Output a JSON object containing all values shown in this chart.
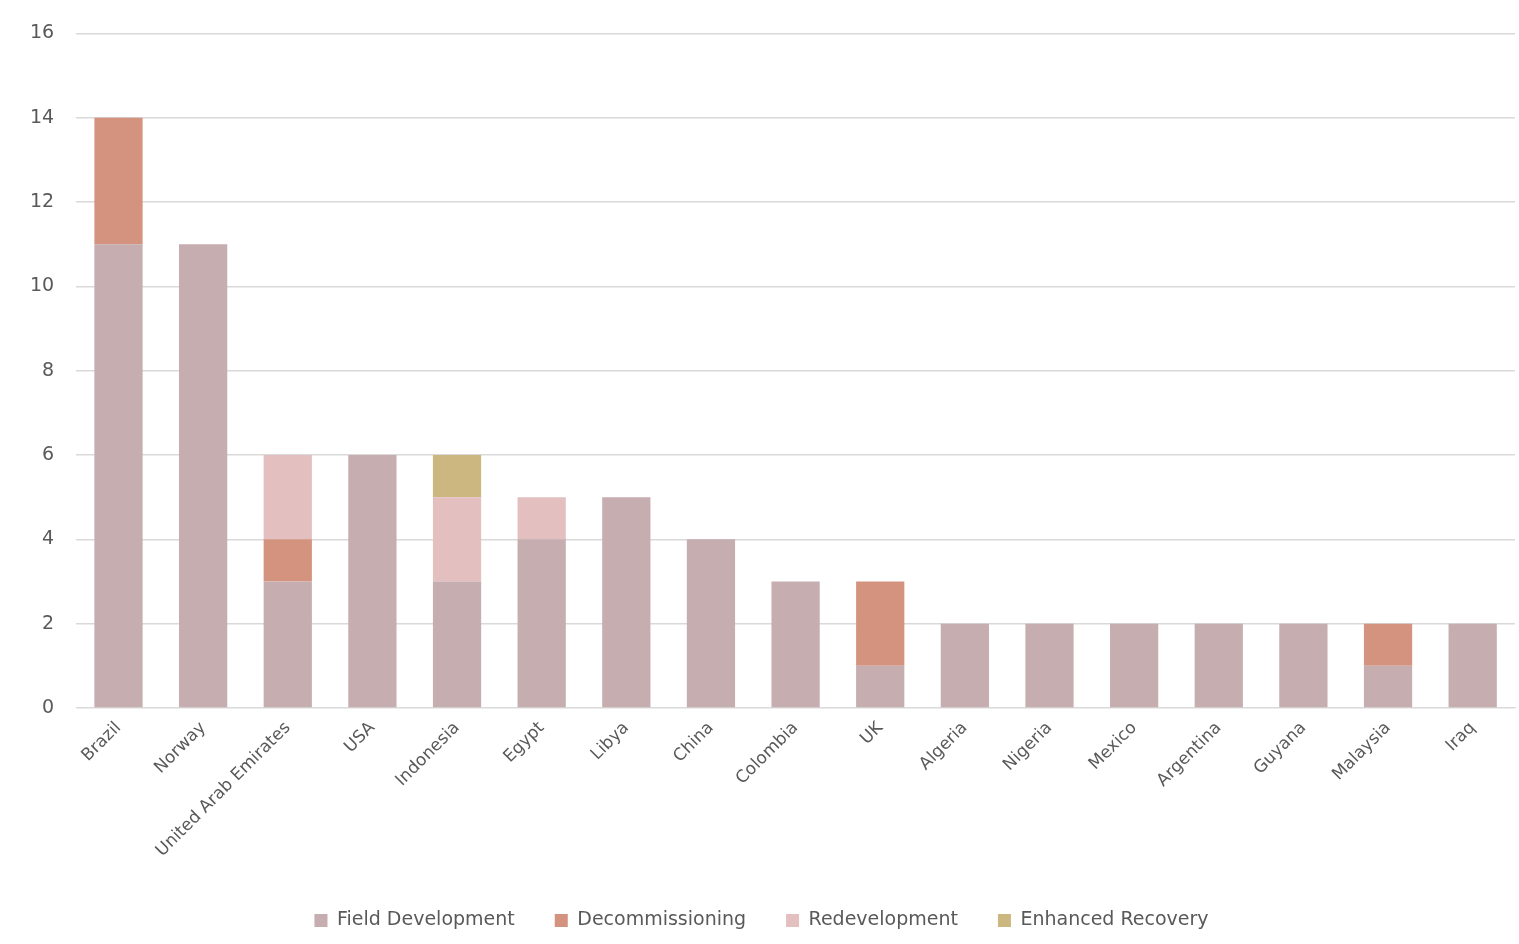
{
  "chart_data": {
    "type": "bar",
    "stacked": true,
    "categories": [
      "Brazil",
      "Norway",
      "United Arab Emirates",
      "USA",
      "Indonesia",
      "Egypt",
      "Libya",
      "China",
      "Colombia",
      "UK",
      "Algeria",
      "Nigeria",
      "Mexico",
      "Argentina",
      "Guyana",
      "Malaysia",
      "Iraq"
    ],
    "series": [
      {
        "name": "Field Development",
        "color": "#c5adb0",
        "values": [
          11,
          11,
          3,
          6,
          3,
          4,
          5,
          4,
          3,
          1,
          2,
          2,
          2,
          2,
          2,
          1,
          2
        ]
      },
      {
        "name": "Decommissioning",
        "color": "#d4937e",
        "values": [
          3,
          0,
          1,
          0,
          0,
          0,
          0,
          0,
          0,
          2,
          0,
          0,
          0,
          0,
          0,
          1,
          0
        ]
      },
      {
        "name": "Redevelopment",
        "color": "#e4bfc0",
        "values": [
          0,
          0,
          2,
          0,
          2,
          1,
          0,
          0,
          0,
          0,
          0,
          0,
          0,
          0,
          0,
          0,
          0
        ]
      },
      {
        "name": "Enhanced Recovery",
        "color": "#cbb77f",
        "values": [
          0,
          0,
          0,
          0,
          1,
          0,
          0,
          0,
          0,
          0,
          0,
          0,
          0,
          0,
          0,
          0,
          0
        ]
      }
    ],
    "ylim": [
      0,
      16
    ],
    "yticks": [
      0,
      2,
      4,
      6,
      8,
      10,
      12,
      14,
      16
    ],
    "grid": "y",
    "legend": "bottom"
  }
}
